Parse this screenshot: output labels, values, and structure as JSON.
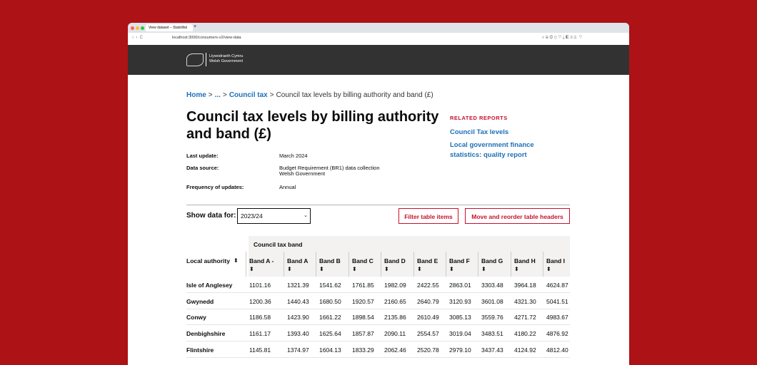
{
  "browser": {
    "tab_title": "View dataset – StatsWal",
    "url": "localhost:3000/consumers-v2/view-data"
  },
  "header": {
    "logo_line1": "Llywodraeth Cymru",
    "logo_line2": "Welsh Government"
  },
  "breadcrumb": [
    "Home",
    ">",
    "...",
    ">",
    "Council tax",
    ">",
    "Council tax levels by billing authority and band (£)"
  ],
  "title": "Council tax levels by billing authority and band (£)",
  "metadata": [
    {
      "label": "Last update:",
      "value": [
        "March 2024"
      ]
    },
    {
      "label": "Data source:",
      "value": [
        "Budget Requirement (BR1) data collection",
        "Welsh Government"
      ]
    },
    {
      "label": "Frequency of updates:",
      "value": [
        "Annual"
      ]
    }
  ],
  "related": {
    "heading": "RELATED REPORTS",
    "links": [
      "Council Tax levels",
      "Local government finance statistics: quality report"
    ]
  },
  "filter": {
    "label": "Show data for:",
    "selected": "2023/24",
    "buttons": [
      "Filter table items",
      "Move and reorder table headers"
    ]
  },
  "table": {
    "group_header": "Council tax band",
    "row_header": "Local authority",
    "columns": [
      "Band A -",
      "Band A",
      "Band B",
      "Band C",
      "Band D",
      "Band E",
      "Band F",
      "Band G",
      "Band H",
      "Band I"
    ],
    "rows": [
      {
        "name": "Isle of Anglesey",
        "cells": [
          "1101.16",
          "1321.39",
          "1541.62",
          "1761.85",
          "1982.09",
          "2422.55",
          "2863.01",
          "3303.48",
          "3964.18",
          "4624.87"
        ]
      },
      {
        "name": "Gwynedd",
        "cells": [
          "1200.36",
          "1440.43",
          "1680.50",
          "1920.57",
          "2160.65",
          "2640.79",
          "3120.93",
          "3601.08",
          "4321.30",
          "5041.51"
        ]
      },
      {
        "name": "Conwy",
        "cells": [
          "1186.58",
          "1423.90",
          "1661.22",
          "1898.54",
          "2135.86",
          "2610.49",
          "3085.13",
          "3559.76",
          "4271.72",
          "4983.67"
        ]
      },
      {
        "name": "Denbighshire",
        "cells": [
          "1161.17",
          "1393.40",
          "1625.64",
          "1857.87",
          "2090.11",
          "2554.57",
          "3019.04",
          "3483.51",
          "4180.22",
          "4876.92"
        ]
      },
      {
        "name": "Flintshire",
        "cells": [
          "1145.81",
          "1374.97",
          "1604.13",
          "1833.29",
          "2062.46",
          "2520.78",
          "2979.10",
          "3437.43",
          "4124.92",
          "4812.40"
        ]
      }
    ]
  }
}
